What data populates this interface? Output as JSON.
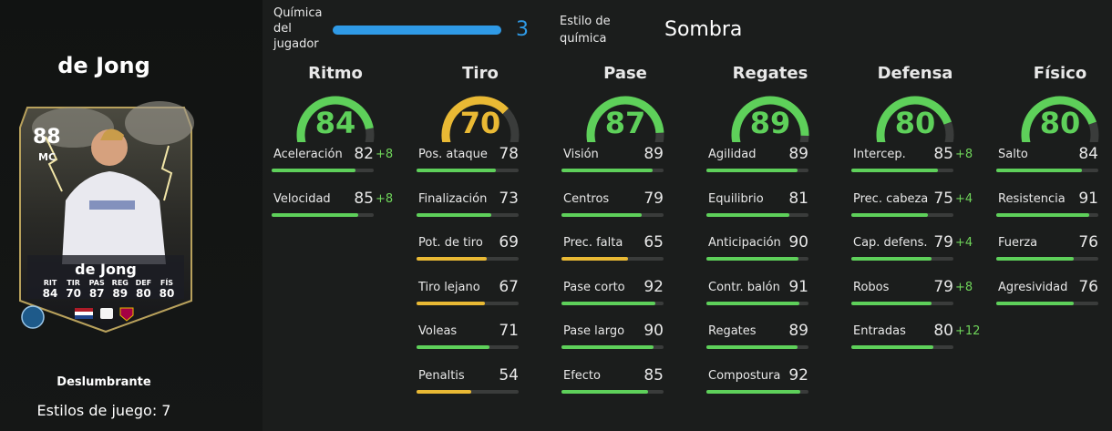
{
  "player": {
    "name": "de Jong",
    "rating": "88",
    "position": "MC",
    "card_stats": [
      {
        "label": "RIT",
        "value": "84"
      },
      {
        "label": "TIR",
        "value": "70"
      },
      {
        "label": "PAS",
        "value": "87"
      },
      {
        "label": "REG",
        "value": "89"
      },
      {
        "label": "DEF",
        "value": "80"
      },
      {
        "label": "FÍS",
        "value": "80"
      }
    ],
    "rarity": "Deslumbrante",
    "playstyles": "Estilos de juego: 7"
  },
  "chemistry": {
    "label": "Química del jugador",
    "value": "3",
    "fraction": 1.0,
    "style_label": "Estilo de química",
    "style_value": "Sombra"
  },
  "colors": {
    "green": "#5ed05a",
    "yellow": "#e9b934",
    "blue": "#2f9ae6",
    "boost": "#6fd45a"
  },
  "categories": [
    {
      "title": "Ritmo",
      "value": "84",
      "color": "#5ed05a",
      "stats": [
        {
          "label": "Aceleración",
          "value": "82",
          "boost": "+8",
          "color": "#5ed05a"
        },
        {
          "label": "Velocidad",
          "value": "85",
          "boost": "+8",
          "color": "#5ed05a"
        }
      ]
    },
    {
      "title": "Tiro",
      "value": "70",
      "color": "#e9b934",
      "stats": [
        {
          "label": "Pos. ataque",
          "value": "78",
          "boost": "",
          "color": "#5ed05a"
        },
        {
          "label": "Finalización",
          "value": "73",
          "boost": "",
          "color": "#5ed05a"
        },
        {
          "label": "Pot. de tiro",
          "value": "69",
          "boost": "",
          "color": "#e9b934"
        },
        {
          "label": "Tiro lejano",
          "value": "67",
          "boost": "",
          "color": "#e9b934"
        },
        {
          "label": "Voleas",
          "value": "71",
          "boost": "",
          "color": "#5ed05a"
        },
        {
          "label": "Penaltis",
          "value": "54",
          "boost": "",
          "color": "#e9b934"
        }
      ]
    },
    {
      "title": "Pase",
      "value": "87",
      "color": "#5ed05a",
      "stats": [
        {
          "label": "Visión",
          "value": "89",
          "boost": "",
          "color": "#5ed05a"
        },
        {
          "label": "Centros",
          "value": "79",
          "boost": "",
          "color": "#5ed05a"
        },
        {
          "label": "Prec. falta",
          "value": "65",
          "boost": "",
          "color": "#e9b934"
        },
        {
          "label": "Pase corto",
          "value": "92",
          "boost": "",
          "color": "#5ed05a"
        },
        {
          "label": "Pase largo",
          "value": "90",
          "boost": "",
          "color": "#5ed05a"
        },
        {
          "label": "Efecto",
          "value": "85",
          "boost": "",
          "color": "#5ed05a"
        }
      ]
    },
    {
      "title": "Regates",
      "value": "89",
      "color": "#5ed05a",
      "stats": [
        {
          "label": "Agilidad",
          "value": "89",
          "boost": "",
          "color": "#5ed05a"
        },
        {
          "label": "Equilibrio",
          "value": "81",
          "boost": "",
          "color": "#5ed05a"
        },
        {
          "label": "Anticipación",
          "value": "90",
          "boost": "",
          "color": "#5ed05a"
        },
        {
          "label": "Contr. balón",
          "value": "91",
          "boost": "",
          "color": "#5ed05a"
        },
        {
          "label": "Regates",
          "value": "89",
          "boost": "",
          "color": "#5ed05a"
        },
        {
          "label": "Compostura",
          "value": "92",
          "boost": "",
          "color": "#5ed05a"
        }
      ]
    },
    {
      "title": "Defensa",
      "value": "80",
      "color": "#5ed05a",
      "stats": [
        {
          "label": "Intercep.",
          "value": "85",
          "boost": "+8",
          "color": "#5ed05a"
        },
        {
          "label": "Prec. cabeza",
          "value": "75",
          "boost": "+4",
          "color": "#5ed05a"
        },
        {
          "label": "Cap. defens.",
          "value": "79",
          "boost": "+4",
          "color": "#5ed05a"
        },
        {
          "label": "Robos",
          "value": "79",
          "boost": "+8",
          "color": "#5ed05a"
        },
        {
          "label": "Entradas",
          "value": "80",
          "boost": "+12",
          "color": "#5ed05a"
        }
      ]
    },
    {
      "title": "Físico",
      "value": "80",
      "color": "#5ed05a",
      "stats": [
        {
          "label": "Salto",
          "value": "84",
          "boost": "",
          "color": "#5ed05a"
        },
        {
          "label": "Resistencia",
          "value": "91",
          "boost": "",
          "color": "#5ed05a"
        },
        {
          "label": "Fuerza",
          "value": "76",
          "boost": "",
          "color": "#5ed05a"
        },
        {
          "label": "Agresividad",
          "value": "76",
          "boost": "",
          "color": "#5ed05a"
        }
      ]
    }
  ]
}
